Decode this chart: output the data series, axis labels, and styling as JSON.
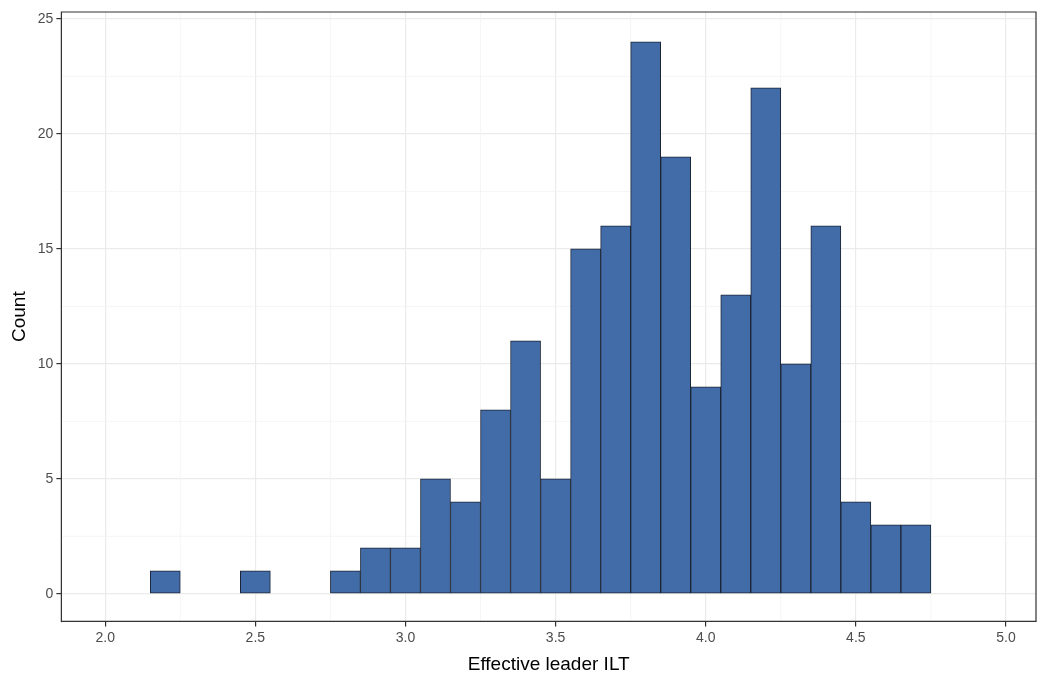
{
  "chart_data": {
    "type": "histogram",
    "xlabel": "Effective leader ILT",
    "ylabel": "Count",
    "bins": [
      2.05,
      2.15,
      2.25,
      2.35,
      2.45,
      2.55,
      2.65,
      2.75,
      2.85,
      2.95,
      3.05,
      3.15,
      3.25,
      3.35,
      3.45,
      3.55,
      3.65,
      3.75,
      3.85,
      3.95,
      4.05,
      4.15,
      4.25,
      4.35,
      4.45,
      4.55,
      4.65,
      4.75,
      4.85,
      4.95
    ],
    "values": [
      0,
      1,
      0,
      0,
      1,
      0,
      0,
      1,
      2,
      2,
      5,
      4,
      8,
      11,
      5,
      15,
      16,
      24,
      19,
      9,
      13,
      22,
      10,
      16,
      4,
      3,
      3,
      0,
      0
    ],
    "color": "#416ca8",
    "xlim": [
      1.854,
      5.1
    ],
    "ylim": [
      -1.2,
      25.3
    ],
    "xticks": [
      {
        "value": 2,
        "label": "2.0"
      },
      {
        "value": 2.5,
        "label": "2.5"
      },
      {
        "value": 3,
        "label": "3.0"
      },
      {
        "value": 3.5,
        "label": "3.5"
      },
      {
        "value": 4,
        "label": "4.0"
      },
      {
        "value": 4.5,
        "label": "4.5"
      },
      {
        "value": 5,
        "label": "5.0"
      }
    ],
    "yticks": [
      0,
      5,
      10,
      15,
      20,
      25
    ],
    "grid": true,
    "legend": false
  }
}
